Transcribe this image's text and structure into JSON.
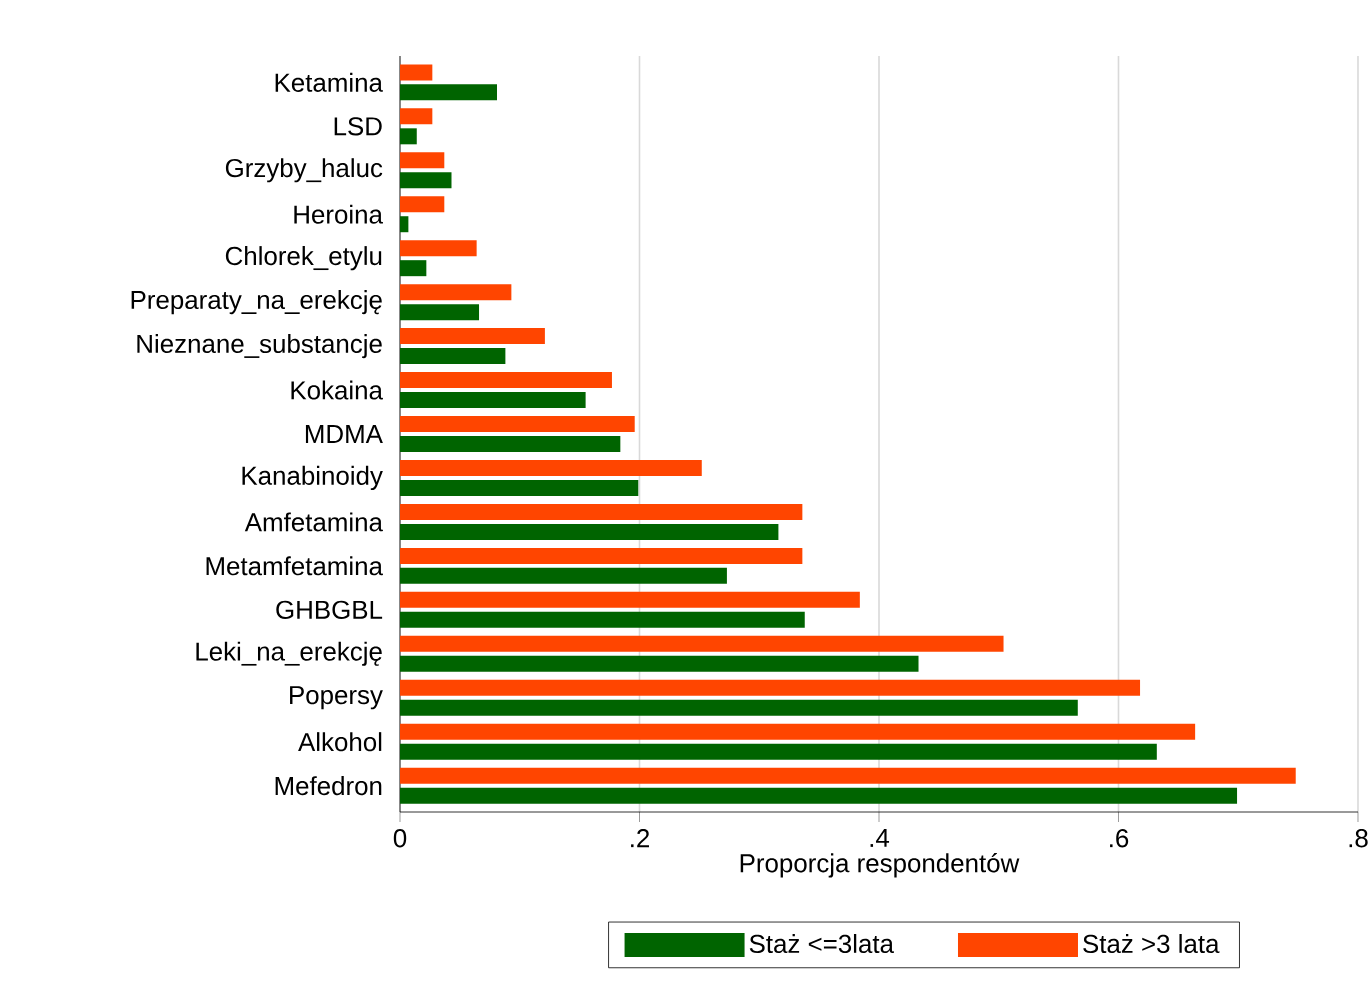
{
  "chart_data": {
    "type": "bar",
    "orientation": "horizontal",
    "xlabel": "Proporcja respondentów",
    "categories": [
      "Ketamina",
      "LSD",
      "Grzyby_haluc",
      "Heroina",
      "Chlorek_etylu",
      "Preparaty_na_erekcję",
      "Nieznane_substancje",
      "Kokaina",
      "MDMA",
      "Kanabinoidy",
      "Amfetamina",
      "Metamfetamina",
      "GHBGBL",
      "Leki_na_erekcję",
      "Popersy",
      "Alkohol",
      "Mefedron"
    ],
    "series": [
      {
        "name": "Staż <=3lata",
        "color": "#006400",
        "values": [
          0.081,
          0.014,
          0.043,
          0.007,
          0.022,
          0.066,
          0.088,
          0.155,
          0.184,
          0.199,
          0.316,
          0.273,
          0.338,
          0.433,
          0.566,
          0.632,
          0.699
        ]
      },
      {
        "name": "Staż >3 lata",
        "color": "#ff4500",
        "values": [
          0.027,
          0.027,
          0.037,
          0.037,
          0.064,
          0.093,
          0.121,
          0.177,
          0.196,
          0.252,
          0.336,
          0.336,
          0.384,
          0.504,
          0.618,
          0.664,
          0.748
        ]
      }
    ],
    "xlim": [
      0,
      0.8
    ],
    "xticks": [
      0,
      {
        "value": 0.2,
        "label": ".2"
      },
      {
        "value": 0.4,
        "label": ".4"
      },
      {
        "value": 0.6,
        "label": ".6"
      },
      {
        "value": 0.8,
        "label": ".8"
      }
    ],
    "grid": "x",
    "legend": "bottom"
  }
}
